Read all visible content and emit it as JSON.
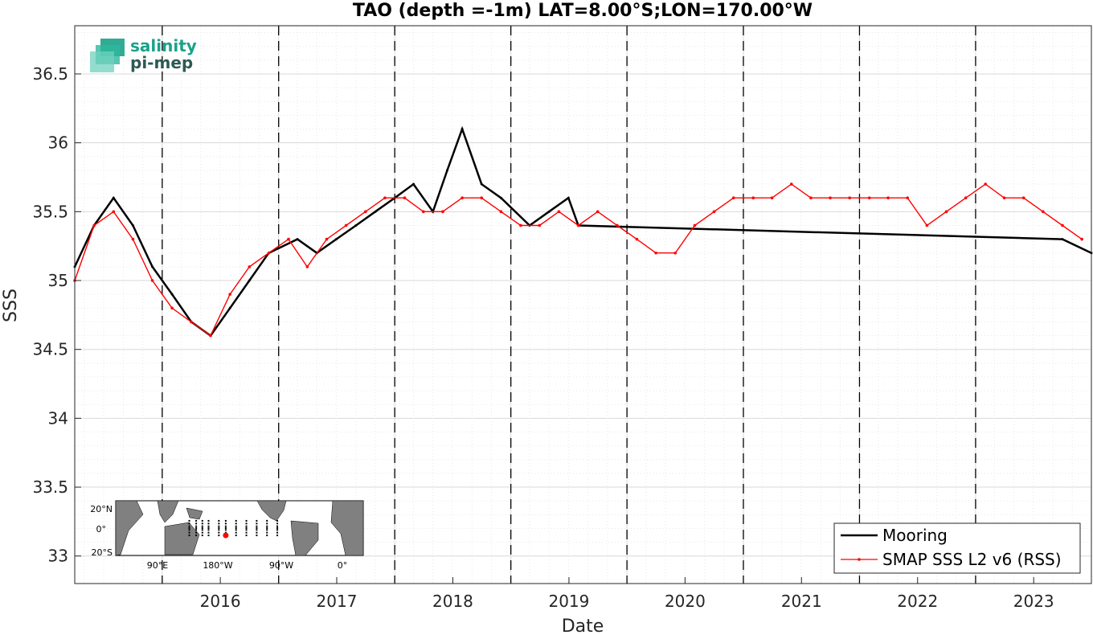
{
  "chart_data": {
    "type": "line",
    "title": "TAO (depth =-1m) LAT=8.00°S;LON=170.00°W",
    "xlabel": "Date",
    "ylabel": "SSS",
    "xlim": [
      "2015-04-01",
      "2023-12-31"
    ],
    "ylim": [
      32.8,
      36.85
    ],
    "x_ticks": [
      "2016",
      "2017",
      "2018",
      "2019",
      "2020",
      "2021",
      "2022",
      "2023"
    ],
    "y_ticks": [
      "33",
      "33.5",
      "34",
      "34.5",
      "35",
      "35.5",
      "36",
      "36.5"
    ],
    "year_markers": [
      "2016-01-01",
      "2017-01-01",
      "2018-01-01",
      "2019-01-01",
      "2020-01-01",
      "2021-01-01",
      "2022-01-01",
      "2023-01-01"
    ],
    "grid": true,
    "legend_position": "bottom-right",
    "series": [
      {
        "name": "Mooring",
        "color": "#000000",
        "x": [
          "2015-04-01",
          "2015-06-01",
          "2015-08-01",
          "2015-10-01",
          "2015-12-01",
          "2016-02-01",
          "2016-04-01",
          "2016-06-01",
          "2016-08-01",
          "2016-10-01",
          "2016-12-01",
          "2017-03-01",
          "2017-05-01",
          "2017-07-01",
          "2017-09-01",
          "2017-11-01",
          "2018-01-01",
          "2018-03-01",
          "2018-05-01",
          "2018-06-15",
          "2018-08-01",
          "2018-10-01",
          "2018-12-01",
          "2019-03-01",
          "2019-05-01",
          "2019-07-01",
          "2019-08-01",
          "2023-10-01",
          "2023-12-31"
        ],
        "values": [
          35.1,
          35.4,
          35.6,
          35.4,
          35.1,
          34.9,
          34.7,
          34.6,
          34.8,
          35.0,
          35.2,
          35.3,
          35.2,
          35.3,
          35.4,
          35.5,
          35.6,
          35.7,
          35.5,
          35.8,
          36.1,
          35.7,
          35.6,
          35.4,
          35.5,
          35.6,
          35.4,
          35.3,
          35.2
        ]
      },
      {
        "name": "SMAP SSS L2 v6 (RSS)",
        "color": "#ff0000",
        "x": [
          "2015-04-01",
          "2015-06-01",
          "2015-08-01",
          "2015-10-01",
          "2015-12-01",
          "2016-02-01",
          "2016-04-01",
          "2016-06-01",
          "2016-08-01",
          "2016-10-01",
          "2016-12-01",
          "2017-02-01",
          "2017-04-01",
          "2017-06-01",
          "2017-08-01",
          "2017-10-01",
          "2017-12-01",
          "2018-02-01",
          "2018-04-01",
          "2018-06-01",
          "2018-08-01",
          "2018-10-01",
          "2018-12-01",
          "2019-02-01",
          "2019-04-01",
          "2019-06-01",
          "2019-08-01",
          "2019-10-01",
          "2019-12-01",
          "2020-02-01",
          "2020-04-01",
          "2020-06-01",
          "2020-08-01",
          "2020-10-01",
          "2020-12-01",
          "2021-02-01",
          "2021-04-01",
          "2021-06-01",
          "2021-08-01",
          "2021-10-01",
          "2021-12-01",
          "2022-02-01",
          "2022-04-01",
          "2022-06-01",
          "2022-08-01",
          "2022-10-01",
          "2022-12-01",
          "2023-02-01",
          "2023-04-01",
          "2023-06-01",
          "2023-08-01",
          "2023-10-01",
          "2023-12-01"
        ],
        "values": [
          35.0,
          35.4,
          35.5,
          35.3,
          35.0,
          34.8,
          34.7,
          34.6,
          34.9,
          35.1,
          35.2,
          35.3,
          35.1,
          35.3,
          35.4,
          35.5,
          35.6,
          35.6,
          35.5,
          35.5,
          35.6,
          35.6,
          35.5,
          35.4,
          35.4,
          35.5,
          35.4,
          35.5,
          35.4,
          35.3,
          35.2,
          35.2,
          35.4,
          35.5,
          35.6,
          35.6,
          35.6,
          35.7,
          35.6,
          35.6,
          35.6,
          35.6,
          35.6,
          35.6,
          35.4,
          35.5,
          35.6,
          35.7,
          35.6,
          35.6,
          35.5,
          35.4,
          35.3
        ]
      }
    ]
  },
  "logo": {
    "line1": "salinity",
    "line2": "pi-mep"
  },
  "inset_map": {
    "lat_labels": [
      "20°N",
      "0°",
      "20°S"
    ],
    "lon_labels": [
      "90°E",
      "180°W",
      "90°W",
      "0°"
    ],
    "marker": {
      "lat": -8.0,
      "lon": -170.0,
      "color": "#ff0000"
    }
  },
  "colors": {
    "mooring": "#000000",
    "smap": "#ff0000",
    "map_land": "#808080",
    "logo": "#1aa389"
  }
}
